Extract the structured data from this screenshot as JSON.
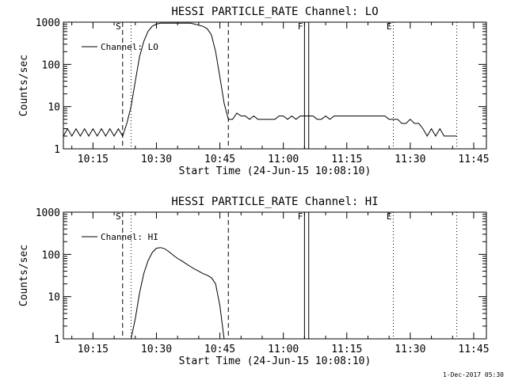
{
  "footer": {
    "timestamp": "1-Dec-2017 05:30"
  },
  "chart_data": [
    {
      "type": "line",
      "title": "HESSI PARTICLE_RATE Channel: LO",
      "xlabel": "Start Time (24-Jun-15 10:08:10)",
      "ylabel": "Counts/sec",
      "yscale": "log",
      "ylim": [
        1,
        1000
      ],
      "xlim": [
        "10:08",
        "11:48"
      ],
      "xticks": [
        "10:15",
        "10:30",
        "10:45",
        "11:00",
        "11:15",
        "11:30",
        "11:45"
      ],
      "yticks": [
        "1",
        "10",
        "100",
        "1000"
      ],
      "legend": {
        "position": "top-left",
        "entries": [
          "Channel: LO"
        ]
      },
      "markers": [
        {
          "label": "S",
          "time": "10:22",
          "style": "dashed"
        },
        {
          "label": "",
          "time": "10:24",
          "style": "dotted"
        },
        {
          "label": "",
          "time": "10:47",
          "style": "dashed"
        },
        {
          "label": "F",
          "time": "11:05",
          "style": "solid"
        },
        {
          "label": "",
          "time": "11:06",
          "style": "solid"
        },
        {
          "label": "E",
          "time": "11:26",
          "style": "dotted"
        },
        {
          "label": "",
          "time": "11:41",
          "style": "dotted"
        }
      ],
      "series": [
        {
          "name": "Channel: LO",
          "x": [
            "10:08",
            "10:09",
            "10:10",
            "10:11",
            "10:12",
            "10:13",
            "10:14",
            "10:15",
            "10:16",
            "10:17",
            "10:18",
            "10:19",
            "10:20",
            "10:21",
            "10:22",
            "10:23",
            "10:24",
            "10:25",
            "10:26",
            "10:27",
            "10:28",
            "10:29",
            "10:30",
            "10:31",
            "10:32",
            "10:33",
            "10:34",
            "10:35",
            "10:36",
            "10:37",
            "10:38",
            "10:39",
            "10:40",
            "10:41",
            "10:42",
            "10:43",
            "10:44",
            "10:45",
            "10:46",
            "10:47",
            "10:48",
            "10:49",
            "10:50",
            "10:51",
            "10:52",
            "10:53",
            "10:54",
            "10:55",
            "10:56",
            "10:57",
            "10:58",
            "10:59",
            "11:00",
            "11:01",
            "11:02",
            "11:03",
            "11:04",
            "11:05",
            "11:06",
            "11:07",
            "11:08",
            "11:09",
            "11:10",
            "11:11",
            "11:12",
            "11:13",
            "11:14",
            "11:15",
            "11:16",
            "11:17",
            "11:18",
            "11:19",
            "11:20",
            "11:21",
            "11:22",
            "11:23",
            "11:24",
            "11:25",
            "11:26",
            "11:27",
            "11:28",
            "11:29",
            "11:30",
            "11:31",
            "11:32",
            "11:33",
            "11:34",
            "11:35",
            "11:36",
            "11:37",
            "11:38",
            "11:39",
            "11:40",
            "11:41"
          ],
          "values": [
            2,
            3,
            2,
            3,
            2,
            3,
            2,
            3,
            2,
            3,
            2,
            3,
            2,
            3,
            2,
            4,
            10,
            40,
            150,
            350,
            600,
            800,
            900,
            950,
            950,
            950,
            950,
            950,
            950,
            950,
            950,
            900,
            850,
            800,
            700,
            500,
            200,
            50,
            12,
            5,
            5,
            7,
            6,
            6,
            5,
            6,
            5,
            5,
            5,
            5,
            5,
            6,
            6,
            5,
            6,
            5,
            6,
            6,
            6,
            6,
            5,
            5,
            6,
            5,
            6,
            6,
            6,
            6,
            6,
            6,
            6,
            6,
            6,
            6,
            6,
            6,
            6,
            5,
            5,
            5,
            4,
            4,
            5,
            4,
            4,
            3,
            2,
            3,
            2,
            3,
            2,
            2,
            2,
            2
          ]
        }
      ]
    },
    {
      "type": "line",
      "title": "HESSI PARTICLE_RATE Channel: HI",
      "xlabel": "Start Time (24-Jun-15 10:08:10)",
      "ylabel": "Counts/sec",
      "yscale": "log",
      "ylim": [
        1,
        1000
      ],
      "xlim": [
        "10:08",
        "11:48"
      ],
      "xticks": [
        "10:15",
        "10:30",
        "10:45",
        "11:00",
        "11:15",
        "11:30",
        "11:45"
      ],
      "yticks": [
        "1",
        "10",
        "100",
        "1000"
      ],
      "legend": {
        "position": "top-left",
        "entries": [
          "Channel: HI"
        ]
      },
      "markers": [
        {
          "label": "S",
          "time": "10:22",
          "style": "dashed"
        },
        {
          "label": "",
          "time": "10:24",
          "style": "dotted"
        },
        {
          "label": "",
          "time": "10:47",
          "style": "dashed"
        },
        {
          "label": "F",
          "time": "11:05",
          "style": "solid"
        },
        {
          "label": "",
          "time": "11:06",
          "style": "solid"
        },
        {
          "label": "E",
          "time": "11:26",
          "style": "dotted"
        },
        {
          "label": "",
          "time": "11:41",
          "style": "dotted"
        }
      ],
      "series": [
        {
          "name": "Channel: HI",
          "x": [
            "10:24",
            "10:25",
            "10:26",
            "10:27",
            "10:28",
            "10:29",
            "10:30",
            "10:31",
            "10:32",
            "10:33",
            "10:34",
            "10:35",
            "10:36",
            "10:37",
            "10:38",
            "10:39",
            "10:40",
            "10:41",
            "10:42",
            "10:43",
            "10:44",
            "10:45",
            "10:46"
          ],
          "values": [
            1,
            3,
            12,
            35,
            70,
            110,
            140,
            145,
            135,
            115,
            95,
            80,
            70,
            60,
            52,
            45,
            40,
            35,
            32,
            28,
            20,
            6,
            1
          ]
        }
      ]
    }
  ]
}
